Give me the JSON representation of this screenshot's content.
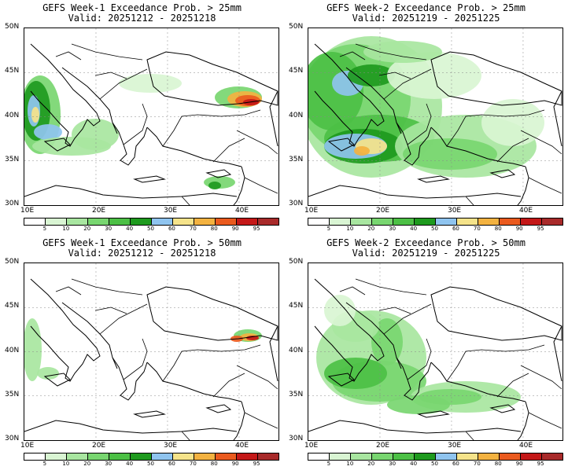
{
  "panels": [
    {
      "title": "GEFS Week-1 Exceedance Prob. > 25mm",
      "valid": "Valid: 20251212 - 20251218"
    },
    {
      "title": "GEFS Week-2 Exceedance Prob. > 25mm",
      "valid": "Valid: 20251219 - 20251225"
    },
    {
      "title": "GEFS Week-1 Exceedance Prob. > 50mm",
      "valid": "Valid: 20251212 - 20251218"
    },
    {
      "title": "GEFS Week-2 Exceedance Prob. > 50mm",
      "valid": "Valid: 20251219 - 20251225"
    }
  ],
  "axes": {
    "lat_labels": [
      "50N",
      "45N",
      "40N",
      "35N",
      "30N"
    ],
    "lon_labels": [
      "10E",
      "20E",
      "30E",
      "40E"
    ]
  },
  "colorbar": {
    "labels": [
      "5",
      "10",
      "20",
      "30",
      "40",
      "50",
      "60",
      "70",
      "80",
      "90",
      "95"
    ],
    "colors": [
      "#ffffff",
      "#d9f5d3",
      "#a8e6a0",
      "#78d670",
      "#4cc045",
      "#1e9a1e",
      "#8fc4ef",
      "#f5e38a",
      "#f3b240",
      "#ea5a1e",
      "#c41818",
      "#a82a2a"
    ]
  }
}
